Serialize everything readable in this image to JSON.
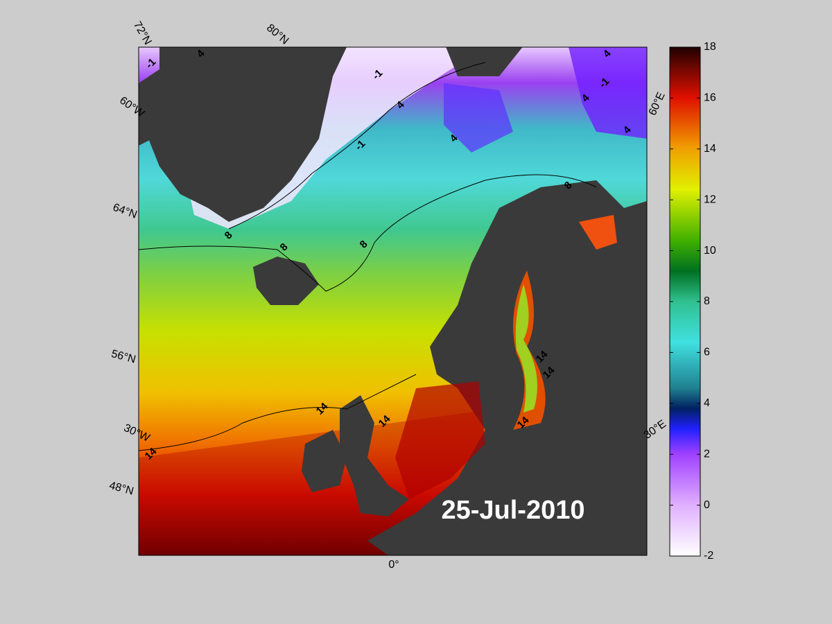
{
  "date_label": "25-Jul-2010",
  "graticule_labels": {
    "lat_72": "72°N",
    "lat_80": "80°N",
    "lon_60w": "60°W",
    "lat_64": "64°N",
    "lat_56": "56°N",
    "lon_30w": "30°W",
    "lat_48": "48°N",
    "lon_0": "0°",
    "lon_30e": "30°E",
    "lon_60e": "60°E"
  },
  "contour_labels": [
    "-1",
    "-1",
    "-1",
    "-1",
    "4",
    "4",
    "4",
    "4",
    "4",
    "4",
    "8",
    "8",
    "8",
    "8",
    "14",
    "14",
    "14",
    "14",
    "14",
    "14"
  ],
  "colorbar": {
    "range": [
      -2,
      18
    ],
    "ticks": [
      -2,
      0,
      2,
      4,
      6,
      8,
      10,
      12,
      14,
      16,
      18
    ]
  }
}
